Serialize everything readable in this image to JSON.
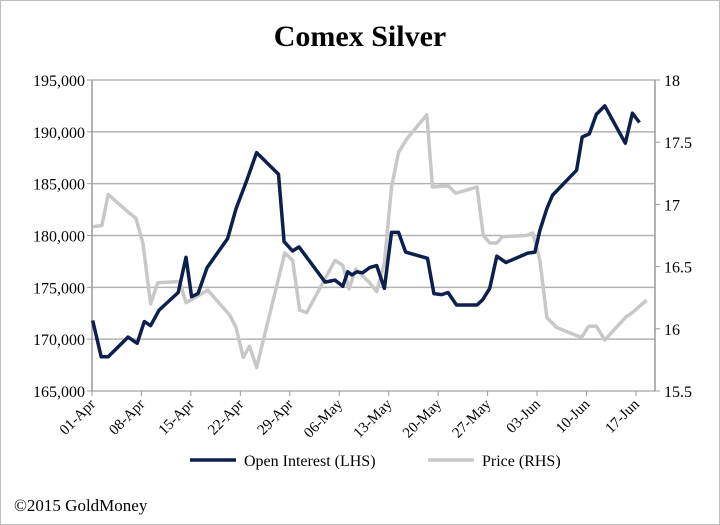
{
  "chart_data": {
    "type": "line",
    "title": "Comex Silver",
    "xlabel": "",
    "ylabel": "",
    "x_unit": "days since 01-Apr",
    "x_ticks": [
      {
        "day": 0,
        "label": "01-Apr"
      },
      {
        "day": 7,
        "label": "08-Apr"
      },
      {
        "day": 14,
        "label": "15-Apr"
      },
      {
        "day": 21,
        "label": "22-Apr"
      },
      {
        "day": 28,
        "label": "29-Apr"
      },
      {
        "day": 35,
        "label": "06-May"
      },
      {
        "day": 42,
        "label": "13-May"
      },
      {
        "day": 49,
        "label": "20-May"
      },
      {
        "day": 56,
        "label": "27-May"
      },
      {
        "day": 63,
        "label": "03-Jun"
      },
      {
        "day": 70,
        "label": "10-Jun"
      },
      {
        "day": 77,
        "label": "17-Jun"
      }
    ],
    "xlim": [
      0,
      79.7
    ],
    "y_left": {
      "ylim": [
        165000,
        195000
      ],
      "ticks": [
        "165,000",
        "170,000",
        "175,000",
        "180,000",
        "185,000",
        "190,000",
        "195,000"
      ],
      "values": [
        165000,
        170000,
        175000,
        180000,
        185000,
        190000,
        195000
      ]
    },
    "y_right": {
      "ylim": [
        15.5,
        18
      ],
      "ticks": [
        "15.5",
        "16",
        "16.5",
        "17",
        "17.5",
        "18"
      ],
      "values": [
        15.5,
        16,
        16.5,
        17,
        17.5,
        18
      ]
    },
    "grid": true,
    "legend_position": "bottom",
    "series": [
      {
        "name": "Open Interest (LHS)",
        "axis": "left",
        "color": "#0d1f4d",
        "x": [
          0.1,
          1.3,
          2.3,
          5.1,
          6.4,
          7.4,
          8.3,
          9.5,
          12.2,
          13.3,
          14.1,
          15.0,
          16.3,
          19.2,
          20.4,
          21.9,
          23.3,
          26.4,
          27.2,
          28.4,
          29.3,
          33.0,
          34.4,
          35.5,
          36.2,
          36.8,
          37.5,
          38.3,
          39.3,
          40.3,
          41.4,
          42.4,
          43.4,
          44.4,
          47.5,
          48.4,
          49.5,
          50.4,
          51.6,
          54.5,
          55.3,
          56.3,
          57.3,
          58.6,
          61.7,
          62.7,
          63.4,
          64.4,
          65.2,
          68.6,
          69.4,
          70.4,
          71.4,
          72.6,
          75.5,
          76.5,
          77.5
        ],
        "values": [
          171800,
          168300,
          168300,
          170200,
          169600,
          171700,
          171300,
          172800,
          174500,
          177900,
          174100,
          174400,
          176900,
          179700,
          182600,
          185300,
          188000,
          185900,
          179400,
          178500,
          178900,
          175500,
          175700,
          175100,
          176500,
          176200,
          176500,
          176400,
          176900,
          177100,
          174900,
          180300,
          180300,
          178400,
          177800,
          174400,
          174300,
          174500,
          173300,
          173300,
          173800,
          174900,
          178000,
          177400,
          178300,
          178400,
          180500,
          182600,
          183900,
          186300,
          189500,
          189800,
          191700,
          192500,
          188900,
          191800,
          190900
        ]
      },
      {
        "name": "Price (RHS)",
        "axis": "right",
        "color": "#c8c8c8",
        "x": [
          0.1,
          1.4,
          2.3,
          5.1,
          6.2,
          7.2,
          8.3,
          9.3,
          12.4,
          13.3,
          16.4,
          19.5,
          20.4,
          21.4,
          22.3,
          23.3,
          27.3,
          28.4,
          29.4,
          30.4,
          34.4,
          35.5,
          36.4,
          37.3,
          39.3,
          40.3,
          41.4,
          42.4,
          43.4,
          44.6,
          47.4,
          48.2,
          50.4,
          51.5,
          54.5,
          55.4,
          56.3,
          57.3,
          58.1,
          61.5,
          62.4,
          63.4,
          64.4,
          65.8,
          69.3,
          70.3,
          71.4,
          72.6,
          75.5,
          76.5,
          78.5
        ],
        "values": [
          16.82,
          16.83,
          17.08,
          16.94,
          16.89,
          16.69,
          16.2,
          16.37,
          16.38,
          16.21,
          16.31,
          16.11,
          16.01,
          15.77,
          15.86,
          15.69,
          16.61,
          16.55,
          16.15,
          16.13,
          16.55,
          16.51,
          16.32,
          16.48,
          16.37,
          16.3,
          16.53,
          17.14,
          17.42,
          17.53,
          17.72,
          17.14,
          17.15,
          17.09,
          17.14,
          16.75,
          16.69,
          16.69,
          16.74,
          16.75,
          16.77,
          16.55,
          16.09,
          16.01,
          15.93,
          16.02,
          16.02,
          15.91,
          16.09,
          16.13,
          16.23
        ]
      }
    ],
    "footer": "©2015 GoldMoney"
  }
}
